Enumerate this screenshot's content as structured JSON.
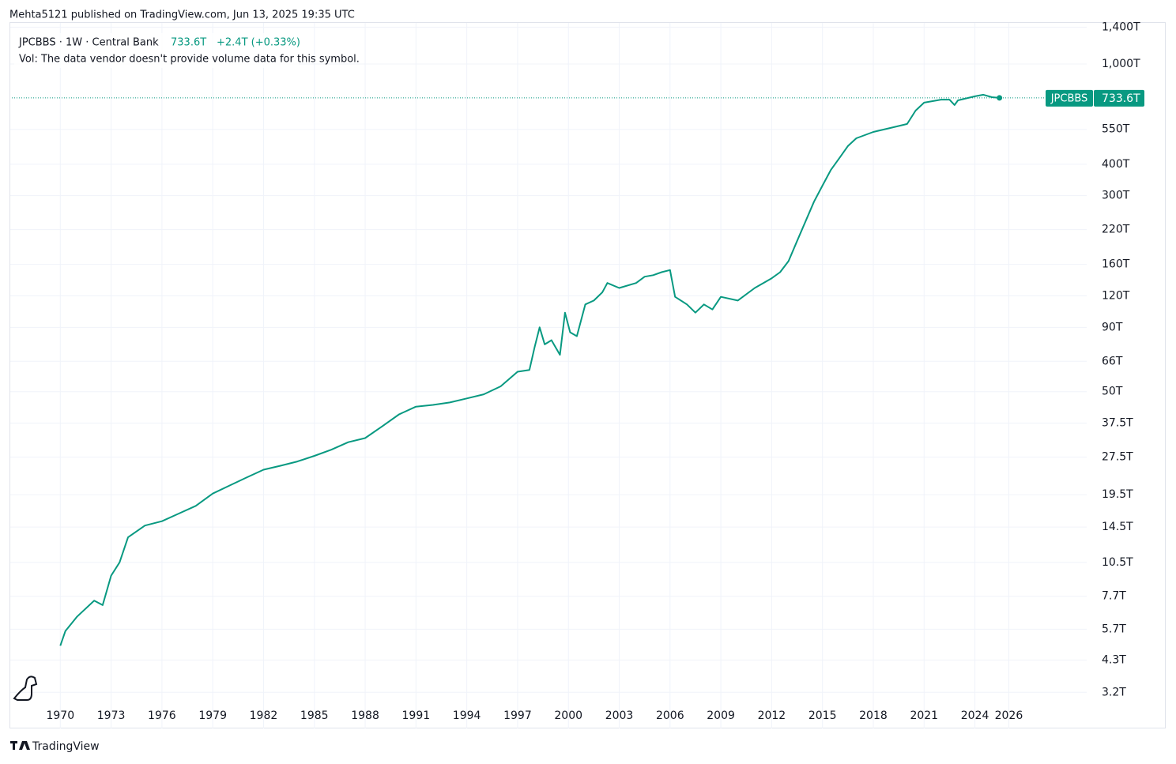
{
  "header": {
    "published": "Mehta5121 published on TradingView.com, Jun 13, 2025 19:35 UTC",
    "legend_title": "JPCBBS · 1W · Central Bank",
    "last": "733.6T",
    "change": "+2.4T (+0.33%)",
    "volume_note": "Vol: The data vendor doesn't provide volume data for this symbol.",
    "price_tag_symbol": "JPCBBS",
    "price_tag_value": "733.6T"
  },
  "footer": {
    "brand": "TradingView"
  },
  "chart_data": {
    "type": "line",
    "log_scale": true,
    "grid": true,
    "x": [
      1970.0,
      1970.3,
      1971,
      1972,
      1972.5,
      1973,
      1973.5,
      1974,
      1975,
      1976,
      1977,
      1978,
      1979,
      1980,
      1981,
      1982,
      1983,
      1984,
      1985,
      1986,
      1987,
      1988,
      1989,
      1990,
      1991,
      1992,
      1993,
      1994,
      1995,
      1996,
      1997,
      1997.7,
      1998,
      1998.3,
      1998.6,
      1999,
      1999.5,
      1999.8,
      2000.1,
      2000.5,
      2001,
      2001.5,
      2002,
      2002.3,
      2003,
      2004,
      2004.5,
      2005,
      2005.5,
      2006,
      2006.3,
      2007,
      2007.5,
      2008,
      2008.5,
      2009,
      2010,
      2011,
      2012,
      2012.5,
      2013,
      2013.5,
      2014,
      2014.5,
      2015,
      2015.5,
      2016,
      2016.5,
      2017,
      2018,
      2019,
      2020,
      2020.5,
      2021,
      2022,
      2022.5,
      2022.8,
      2023,
      2024,
      2024.5,
      2025.0,
      2025.45
    ],
    "series": [
      {
        "name": "JPCBBS",
        "color": "#089981",
        "values": [
          4.9,
          5.6,
          6.4,
          7.4,
          7.1,
          9.3,
          10.5,
          13.2,
          14.7,
          15.3,
          16.4,
          17.6,
          19.7,
          21.2,
          22.8,
          24.5,
          25.4,
          26.4,
          27.8,
          29.4,
          31.5,
          32.7,
          36.4,
          40.6,
          43.6,
          44.3,
          45.3,
          47,
          48.8,
          52.5,
          60,
          61,
          75,
          90,
          77,
          80,
          70,
          103,
          86,
          83,
          111,
          115,
          124,
          135,
          129,
          135,
          143,
          145,
          149,
          152,
          119,
          111,
          103,
          111,
          106,
          119,
          115,
          129,
          141,
          149,
          165,
          198,
          237,
          284,
          329,
          380,
          423,
          472,
          507,
          537,
          557,
          578,
          653,
          702,
          722,
          722,
          687,
          717,
          744,
          755,
          738,
          733.6
        ]
      }
    ],
    "xlim": [
      1967,
      2030.6
    ],
    "xticks": [
      1970,
      1973,
      1976,
      1979,
      1982,
      1985,
      1988,
      1991,
      1994,
      1997,
      2000,
      2003,
      2006,
      2009,
      2012,
      2015,
      2018,
      2021,
      2024,
      2026
    ],
    "ylim": [
      2.3,
      1466
    ],
    "yticks": [
      {
        "value": 1400,
        "label": "1,400T"
      },
      {
        "value": 1000,
        "label": "1,000T"
      },
      {
        "value": 550,
        "label": "550T"
      },
      {
        "value": 400,
        "label": "400T"
      },
      {
        "value": 300,
        "label": "300T"
      },
      {
        "value": 220,
        "label": "220T"
      },
      {
        "value": 160,
        "label": "160T"
      },
      {
        "value": 120,
        "label": "120T"
      },
      {
        "value": 90,
        "label": "90T"
      },
      {
        "value": 66,
        "label": "66T"
      },
      {
        "value": 50,
        "label": "50T"
      },
      {
        "value": 37.5,
        "label": "37.5T"
      },
      {
        "value": 27.5,
        "label": "27.5T"
      },
      {
        "value": 19.5,
        "label": "19.5T"
      },
      {
        "value": 14.5,
        "label": "14.5T"
      },
      {
        "value": 10.5,
        "label": "10.5T"
      },
      {
        "value": 7.7,
        "label": "7.7T"
      },
      {
        "value": 5.7,
        "label": "5.7T"
      },
      {
        "value": 4.3,
        "label": "4.3T"
      },
      {
        "value": 3.2,
        "label": "3.2T"
      }
    ]
  }
}
